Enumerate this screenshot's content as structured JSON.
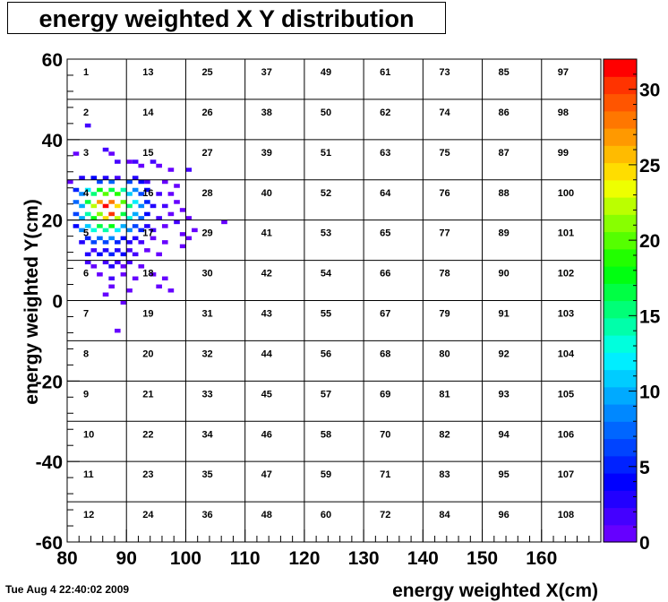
{
  "title": "energy weighted X Y distribution",
  "footer": "Tue Aug  4 22:40:02 2009",
  "chart_data": {
    "type": "heatmap",
    "title": "energy weighted X Y distribution",
    "xlabel": "energy weighted X(cm)",
    "ylabel": "energy weighted Y(cm)",
    "xlim": [
      80,
      170
    ],
    "ylim": [
      -60,
      60
    ],
    "x_ticks": [
      "80",
      "90",
      "100",
      "110",
      "120",
      "130",
      "140",
      "150",
      "160"
    ],
    "y_ticks": [
      "-60",
      "-40",
      "-20",
      "0",
      "20",
      "40",
      "60"
    ],
    "zlim": [
      0,
      32
    ],
    "z_ticks": [
      "0",
      "5",
      "10",
      "15",
      "20",
      "25",
      "30"
    ],
    "grid": true,
    "palette": [
      "#6600ff",
      "#4400ff",
      "#2200ff",
      "#0000ff",
      "#0022ff",
      "#0044ff",
      "#0066ff",
      "#0088ff",
      "#00aaff",
      "#00ccff",
      "#00eeff",
      "#00ffdd",
      "#00ffaa",
      "#00ff77",
      "#00ff44",
      "#00ff11",
      "#22ff00",
      "#55ff00",
      "#88ff00",
      "#bbff00",
      "#eeff00",
      "#ffdd00",
      "#ffbb00",
      "#ff9900",
      "#ff7700",
      "#ff5500",
      "#ff3300",
      "#ff0000"
    ],
    "cell_labels": [
      [
        "1",
        "13",
        "25",
        "37",
        "49",
        "61",
        "73",
        "85",
        "97"
      ],
      [
        "2",
        "14",
        "26",
        "38",
        "50",
        "62",
        "74",
        "86",
        "98"
      ],
      [
        "3",
        "15",
        "27",
        "39",
        "51",
        "63",
        "75",
        "87",
        "99"
      ],
      [
        "4",
        "16",
        "28",
        "40",
        "52",
        "64",
        "76",
        "88",
        "100"
      ],
      [
        "5",
        "17",
        "29",
        "41",
        "53",
        "65",
        "77",
        "89",
        "101"
      ],
      [
        "6",
        "18",
        "30",
        "42",
        "54",
        "66",
        "78",
        "90",
        "102"
      ],
      [
        "7",
        "19",
        "31",
        "43",
        "55",
        "67",
        "79",
        "91",
        "103"
      ],
      [
        "8",
        "20",
        "32",
        "44",
        "56",
        "68",
        "80",
        "92",
        "104"
      ],
      [
        "9",
        "21",
        "33",
        "45",
        "57",
        "69",
        "81",
        "93",
        "105"
      ],
      [
        "10",
        "22",
        "34",
        "46",
        "58",
        "70",
        "82",
        "94",
        "106"
      ],
      [
        "11",
        "23",
        "35",
        "47",
        "59",
        "71",
        "83",
        "95",
        "107"
      ],
      [
        "12",
        "24",
        "36",
        "48",
        "60",
        "72",
        "84",
        "96",
        "108"
      ]
    ],
    "bins": [
      {
        "x": 83,
        "y": 43,
        "z": 2
      },
      {
        "x": 81,
        "y": 36,
        "z": 1
      },
      {
        "x": 86,
        "y": 37,
        "z": 2
      },
      {
        "x": 87,
        "y": 36,
        "z": 1
      },
      {
        "x": 88,
        "y": 34,
        "z": 2
      },
      {
        "x": 90,
        "y": 34,
        "z": 1
      },
      {
        "x": 91,
        "y": 34,
        "z": 2
      },
      {
        "x": 92,
        "y": 33,
        "z": 1
      },
      {
        "x": 94,
        "y": 34,
        "z": 2
      },
      {
        "x": 95,
        "y": 33,
        "z": 1
      },
      {
        "x": 97,
        "y": 32,
        "z": 1
      },
      {
        "x": 100,
        "y": 32,
        "z": 2
      },
      {
        "x": 80,
        "y": 29,
        "z": 1
      },
      {
        "x": 82,
        "y": 30,
        "z": 3
      },
      {
        "x": 84,
        "y": 30,
        "z": 4
      },
      {
        "x": 85,
        "y": 29,
        "z": 6
      },
      {
        "x": 86,
        "y": 30,
        "z": 3
      },
      {
        "x": 87,
        "y": 29,
        "z": 7
      },
      {
        "x": 88,
        "y": 30,
        "z": 2
      },
      {
        "x": 90,
        "y": 29,
        "z": 6
      },
      {
        "x": 91,
        "y": 30,
        "z": 3
      },
      {
        "x": 92,
        "y": 29,
        "z": 4
      },
      {
        "x": 93,
        "y": 29,
        "z": 2
      },
      {
        "x": 96,
        "y": 29,
        "z": 1
      },
      {
        "x": 98,
        "y": 28,
        "z": 1
      },
      {
        "x": 81,
        "y": 27,
        "z": 5
      },
      {
        "x": 82,
        "y": 26,
        "z": 9
      },
      {
        "x": 83,
        "y": 27,
        "z": 12
      },
      {
        "x": 84,
        "y": 26,
        "z": 15
      },
      {
        "x": 85,
        "y": 27,
        "z": 18
      },
      {
        "x": 86,
        "y": 26,
        "z": 20
      },
      {
        "x": 87,
        "y": 27,
        "z": 17
      },
      {
        "x": 88,
        "y": 26,
        "z": 19
      },
      {
        "x": 89,
        "y": 27,
        "z": 14
      },
      {
        "x": 90,
        "y": 26,
        "z": 11
      },
      {
        "x": 91,
        "y": 27,
        "z": 9
      },
      {
        "x": 92,
        "y": 26,
        "z": 6
      },
      {
        "x": 93,
        "y": 27,
        "z": 4
      },
      {
        "x": 95,
        "y": 26,
        "z": 2
      },
      {
        "x": 97,
        "y": 26,
        "z": 1
      },
      {
        "x": 81,
        "y": 24,
        "z": 7
      },
      {
        "x": 82,
        "y": 23,
        "z": 10
      },
      {
        "x": 83,
        "y": 24,
        "z": 16
      },
      {
        "x": 84,
        "y": 23,
        "z": 22
      },
      {
        "x": 85,
        "y": 24,
        "z": 27
      },
      {
        "x": 86,
        "y": 23,
        "z": 32
      },
      {
        "x": 87,
        "y": 24,
        "z": 28
      },
      {
        "x": 88,
        "y": 23,
        "z": 25
      },
      {
        "x": 89,
        "y": 24,
        "z": 20
      },
      {
        "x": 90,
        "y": 23,
        "z": 15
      },
      {
        "x": 91,
        "y": 24,
        "z": 12
      },
      {
        "x": 92,
        "y": 23,
        "z": 8
      },
      {
        "x": 93,
        "y": 24,
        "z": 5
      },
      {
        "x": 94,
        "y": 23,
        "z": 3
      },
      {
        "x": 96,
        "y": 23,
        "z": 2
      },
      {
        "x": 98,
        "y": 24,
        "z": 1
      },
      {
        "x": 99,
        "y": 22,
        "z": 1
      },
      {
        "x": 81,
        "y": 21,
        "z": 6
      },
      {
        "x": 82,
        "y": 20,
        "z": 10
      },
      {
        "x": 83,
        "y": 21,
        "z": 14
      },
      {
        "x": 84,
        "y": 20,
        "z": 18
      },
      {
        "x": 85,
        "y": 21,
        "z": 21
      },
      {
        "x": 86,
        "y": 20,
        "z": 24
      },
      {
        "x": 87,
        "y": 21,
        "z": 30
      },
      {
        "x": 88,
        "y": 20,
        "z": 22
      },
      {
        "x": 89,
        "y": 21,
        "z": 17
      },
      {
        "x": 90,
        "y": 20,
        "z": 13
      },
      {
        "x": 91,
        "y": 21,
        "z": 10
      },
      {
        "x": 92,
        "y": 20,
        "z": 7
      },
      {
        "x": 93,
        "y": 21,
        "z": 4
      },
      {
        "x": 95,
        "y": 20,
        "z": 2
      },
      {
        "x": 97,
        "y": 21,
        "z": 1
      },
      {
        "x": 98,
        "y": 19,
        "z": 2
      },
      {
        "x": 100,
        "y": 20,
        "z": 1
      },
      {
        "x": 106,
        "y": 19,
        "z": 1
      },
      {
        "x": 81,
        "y": 18,
        "z": 4
      },
      {
        "x": 82,
        "y": 17,
        "z": 8
      },
      {
        "x": 83,
        "y": 18,
        "z": 11
      },
      {
        "x": 84,
        "y": 17,
        "z": 13
      },
      {
        "x": 85,
        "y": 18,
        "z": 16
      },
      {
        "x": 86,
        "y": 17,
        "z": 14
      },
      {
        "x": 87,
        "y": 18,
        "z": 18
      },
      {
        "x": 88,
        "y": 17,
        "z": 12
      },
      {
        "x": 89,
        "y": 18,
        "z": 10
      },
      {
        "x": 90,
        "y": 17,
        "z": 8
      },
      {
        "x": 91,
        "y": 18,
        "z": 6
      },
      {
        "x": 92,
        "y": 17,
        "z": 5
      },
      {
        "x": 93,
        "y": 18,
        "z": 3
      },
      {
        "x": 94,
        "y": 17,
        "z": 2
      },
      {
        "x": 96,
        "y": 18,
        "z": 1
      },
      {
        "x": 99,
        "y": 16,
        "z": 1
      },
      {
        "x": 101,
        "y": 17,
        "z": 1
      },
      {
        "x": 82,
        "y": 14,
        "z": 3
      },
      {
        "x": 83,
        "y": 15,
        "z": 5
      },
      {
        "x": 84,
        "y": 14,
        "z": 6
      },
      {
        "x": 85,
        "y": 15,
        "z": 7
      },
      {
        "x": 86,
        "y": 14,
        "z": 6
      },
      {
        "x": 87,
        "y": 15,
        "z": 8
      },
      {
        "x": 88,
        "y": 14,
        "z": 5
      },
      {
        "x": 89,
        "y": 15,
        "z": 4
      },
      {
        "x": 90,
        "y": 14,
        "z": 3
      },
      {
        "x": 91,
        "y": 15,
        "z": 3
      },
      {
        "x": 92,
        "y": 14,
        "z": 2
      },
      {
        "x": 94,
        "y": 15,
        "z": 1
      },
      {
        "x": 96,
        "y": 14,
        "z": 1
      },
      {
        "x": 99,
        "y": 13,
        "z": 1
      },
      {
        "x": 100,
        "y": 15,
        "z": 1
      },
      {
        "x": 83,
        "y": 11,
        "z": 3
      },
      {
        "x": 84,
        "y": 12,
        "z": 2
      },
      {
        "x": 85,
        "y": 11,
        "z": 4
      },
      {
        "x": 86,
        "y": 12,
        "z": 3
      },
      {
        "x": 87,
        "y": 11,
        "z": 5
      },
      {
        "x": 88,
        "y": 12,
        "z": 3
      },
      {
        "x": 89,
        "y": 11,
        "z": 4
      },
      {
        "x": 90,
        "y": 12,
        "z": 2
      },
      {
        "x": 91,
        "y": 11,
        "z": 2
      },
      {
        "x": 93,
        "y": 12,
        "z": 1
      },
      {
        "x": 95,
        "y": 11,
        "z": 1
      },
      {
        "x": 83,
        "y": 9,
        "z": 2
      },
      {
        "x": 84,
        "y": 8,
        "z": 1
      },
      {
        "x": 86,
        "y": 9,
        "z": 2
      },
      {
        "x": 87,
        "y": 8,
        "z": 3
      },
      {
        "x": 88,
        "y": 9,
        "z": 2
      },
      {
        "x": 89,
        "y": 8,
        "z": 1
      },
      {
        "x": 90,
        "y": 9,
        "z": 2
      },
      {
        "x": 92,
        "y": 8,
        "z": 1
      },
      {
        "x": 85,
        "y": 6,
        "z": 1
      },
      {
        "x": 87,
        "y": 5,
        "z": 2
      },
      {
        "x": 89,
        "y": 6,
        "z": 1
      },
      {
        "x": 91,
        "y": 5,
        "z": 1
      },
      {
        "x": 94,
        "y": 6,
        "z": 1
      },
      {
        "x": 96,
        "y": 5,
        "z": 1
      },
      {
        "x": 87,
        "y": 3,
        "z": 1
      },
      {
        "x": 90,
        "y": 2,
        "z": 1
      },
      {
        "x": 95,
        "y": 3,
        "z": 1
      },
      {
        "x": 97,
        "y": 2,
        "z": 1
      },
      {
        "x": 86,
        "y": 1,
        "z": 1
      },
      {
        "x": 89,
        "y": -1,
        "z": 1
      },
      {
        "x": 88,
        "y": -8,
        "z": 1
      }
    ]
  }
}
